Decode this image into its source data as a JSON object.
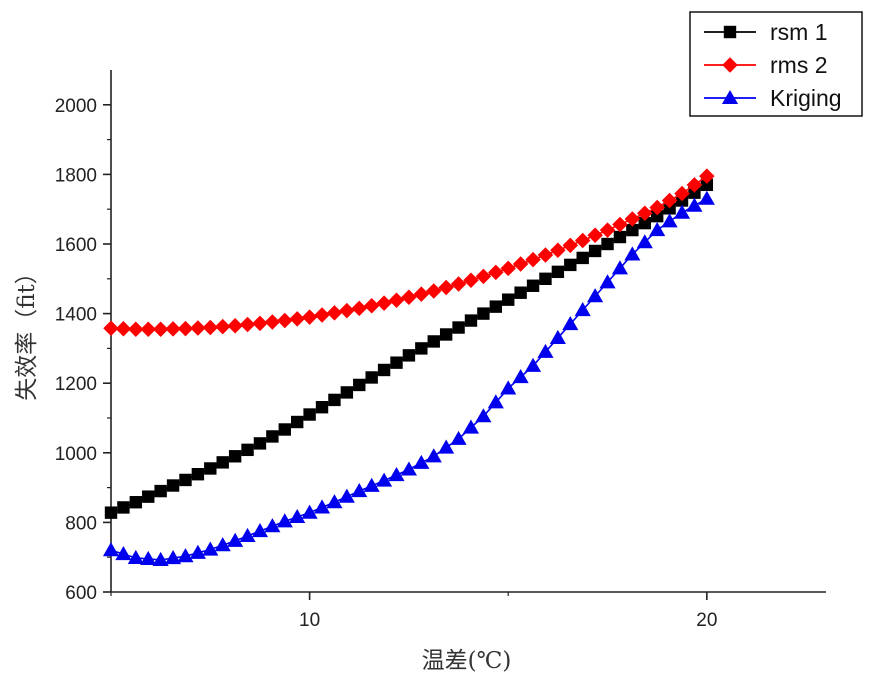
{
  "chart_data": {
    "type": "line",
    "title": "",
    "xlabel": "温差(℃)",
    "ylabel": "失效率（fit）",
    "xlim": [
      5,
      23
    ],
    "ylim": [
      600,
      2100
    ],
    "xticks": [
      10,
      20
    ],
    "yticks": [
      600,
      800,
      1000,
      1200,
      1400,
      1600,
      1800,
      2000
    ],
    "x": [
      5,
      5.625,
      6.25,
      6.875,
      7.5,
      8.125,
      8.75,
      9.375,
      10,
      10.625,
      11.25,
      11.875,
      12.5,
      13.125,
      13.75,
      14.375,
      15,
      15.625,
      16.25,
      16.875,
      17.5,
      18.125,
      18.75,
      19.375,
      20
    ],
    "legend_position": "top-right",
    "series": [
      {
        "name": "rsm 1",
        "color": "#000000",
        "marker": "square",
        "values": [
          828,
          858,
          890,
          922,
          955,
          990,
          1027,
          1067,
          1110,
          1152,
          1195,
          1238,
          1280,
          1320,
          1360,
          1400,
          1440,
          1480,
          1520,
          1560,
          1600,
          1640,
          1680,
          1725,
          1770
        ]
      },
      {
        "name": "rms 2",
        "color": "#ff0000",
        "marker": "diamond",
        "values": [
          1358,
          1355,
          1355,
          1357,
          1360,
          1365,
          1372,
          1380,
          1390,
          1402,
          1415,
          1430,
          1447,
          1465,
          1485,
          1507,
          1530,
          1555,
          1582,
          1610,
          1640,
          1672,
          1705,
          1745,
          1795
        ]
      },
      {
        "name": "Kriging",
        "color": "#0000ee",
        "marker": "triangle",
        "values": [
          720,
          698,
          692,
          703,
          722,
          747,
          775,
          803,
          828,
          858,
          890,
          920,
          952,
          990,
          1040,
          1105,
          1185,
          1250,
          1330,
          1410,
          1490,
          1570,
          1640,
          1690,
          1730
        ]
      }
    ]
  }
}
